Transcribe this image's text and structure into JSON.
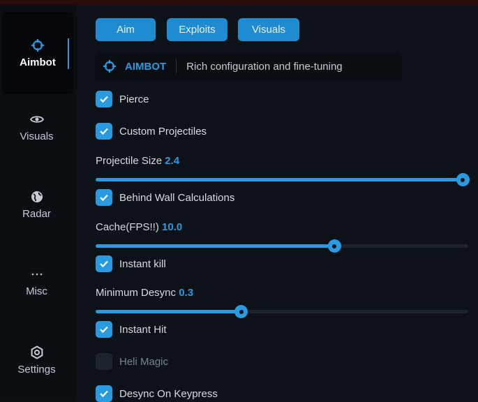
{
  "sidebar": {
    "items": [
      {
        "label": "Aimbot",
        "icon": "crosshair-icon",
        "active": true
      },
      {
        "label": "Visuals",
        "icon": "eye-icon"
      },
      {
        "label": "Radar",
        "icon": "globe-icon"
      },
      {
        "label": "Misc",
        "icon": "more-horizontal-icon"
      },
      {
        "label": "Settings",
        "icon": "gear-icon"
      }
    ]
  },
  "tabs": [
    "Aim",
    "Exploits",
    "Visuals"
  ],
  "header": {
    "title": "AIMBOT",
    "description": "Rich configuration and fine-tuning"
  },
  "options": {
    "pierce": {
      "label": "Pierce",
      "checked": true
    },
    "custom_projectiles": {
      "label": "Custom Projectiles",
      "checked": true
    },
    "projectile_size": {
      "label": "Projectile Size",
      "value": "2.4",
      "fraction": 1.0
    },
    "behind_wall": {
      "label": "Behind Wall Calculations",
      "checked": true
    },
    "cache": {
      "label": "Cache(FPS!!)",
      "value": "10.0",
      "fraction": 0.64
    },
    "instant_kill": {
      "label": "Instant kill",
      "checked": true
    },
    "min_desync": {
      "label": "Minimum Desync",
      "value": "0.3",
      "fraction": 0.39
    },
    "instant_hit": {
      "label": "Instant Hit",
      "checked": true
    },
    "heli_magic": {
      "label": "Heli Magic",
      "checked": false
    },
    "desync_keypress": {
      "label": "Desync On Keypress",
      "checked": true
    }
  },
  "colors": {
    "accent": "#2a9be0",
    "background": "#0d1218"
  }
}
